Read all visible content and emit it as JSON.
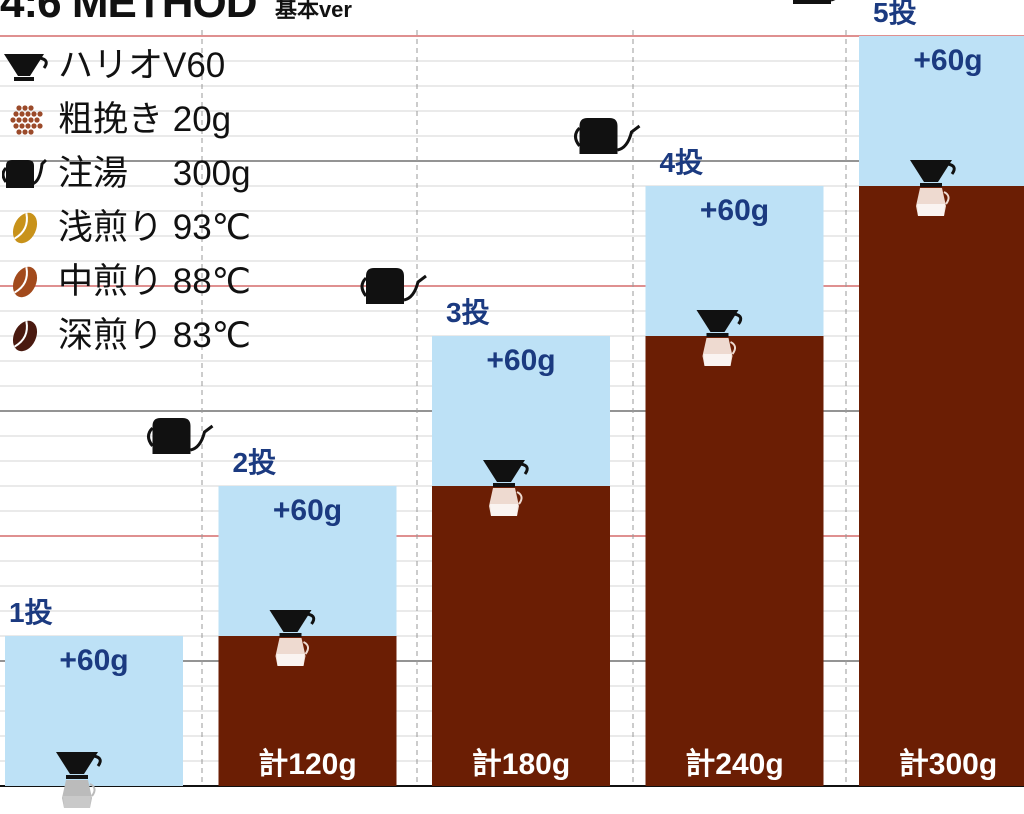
{
  "header": {
    "title": "4:6 METHOD",
    "subtitle": "基本ver"
  },
  "legend": [
    {
      "icon": "dripper-icon",
      "label": "ハリオV60"
    },
    {
      "icon": "ground-coffee-icon",
      "label": "粗挽き 20g",
      "color": "#9b4a2a"
    },
    {
      "icon": "kettle-icon",
      "label": "注湯　 300g"
    },
    {
      "icon": "light-roast-bean-icon",
      "label": "浅煎り 93℃",
      "color": "#c8921a"
    },
    {
      "icon": "medium-roast-bean-icon",
      "label": "中煎り 88℃",
      "color": "#a24a1c"
    },
    {
      "icon": "dark-roast-bean-icon",
      "label": "深煎り 83℃",
      "color": "#4a1a10"
    }
  ],
  "colors": {
    "added": "#bde1f6",
    "cumulative": "#6b1e04",
    "label": "#1b3a80",
    "total_text": "#ffffff"
  },
  "chart_data": {
    "type": "bar",
    "stacked": true,
    "categories": [
      "1投",
      "2投",
      "3投",
      "4投",
      "5投"
    ],
    "series": [
      {
        "values": [
          0,
          60,
          120,
          180,
          240
        ]
      },
      {
        "values": [
          60,
          60,
          60,
          60,
          60
        ]
      }
    ],
    "added_labels": [
      "+60g",
      "+60g",
      "+60g",
      "+60g",
      "+60g"
    ],
    "total_labels": [
      "",
      "計120g",
      "計180g",
      "計240g",
      "計300g"
    ],
    "ylim": [
      0,
      300
    ]
  }
}
